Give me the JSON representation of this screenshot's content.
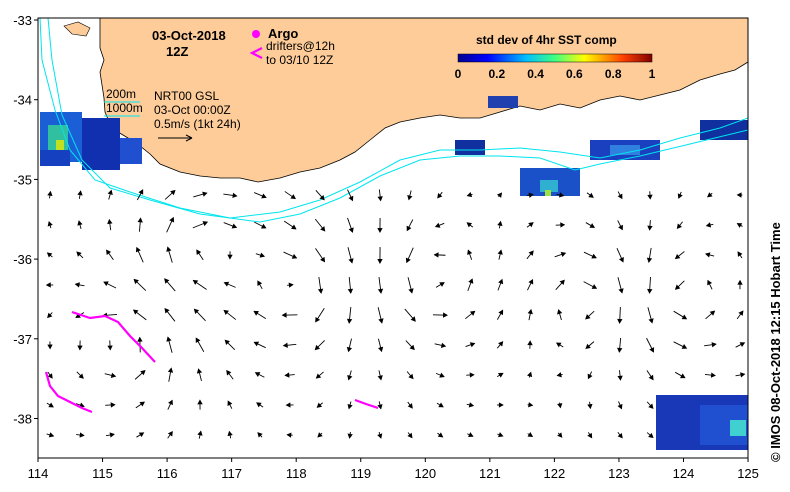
{
  "header": {
    "date": "03-Oct-2018",
    "time": "12Z"
  },
  "legend": {
    "argo_label": "Argo",
    "drifters_line1": "drifters@12h",
    "drifters_line2": "to 03/10 12Z",
    "argo_color": "#ff00ff",
    "drifter_color": "#ff00ff"
  },
  "contours": {
    "label_200": "200m",
    "label_1000": "1000m",
    "color": "#00e5ee"
  },
  "product": {
    "line1": "NRT00 GSL",
    "line2": "03-Oct 00:00Z",
    "line3": "0.5m/s (1kt 24h)"
  },
  "colorbar": {
    "title": "std dev of 4hr SST comp",
    "ticks": [
      "0",
      "0.2",
      "0.4",
      "0.6",
      "0.8",
      "1"
    ]
  },
  "axes": {
    "x_ticks": [
      "114",
      "115",
      "116",
      "117",
      "118",
      "119",
      "120",
      "121",
      "122",
      "123",
      "124",
      "125"
    ],
    "y_ticks": [
      "-33",
      "-34",
      "-35",
      "-36",
      "-37",
      "-38"
    ]
  },
  "credit": "© IMOS 08-Oct-2018 12:15 Hobart Time",
  "colors": {
    "land": "#fdcc99",
    "ocean": "#ffffff",
    "vector": "#000000"
  }
}
